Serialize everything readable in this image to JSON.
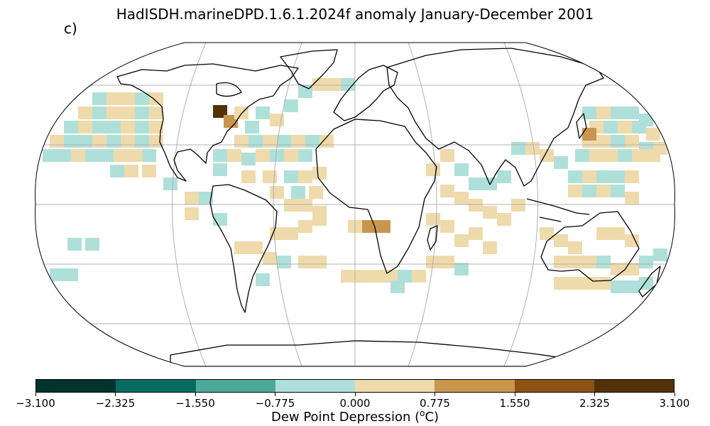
{
  "title": "HadISDH.marineDPD.1.6.1.2024f anomaly January-December 2001",
  "panel_label": "c)",
  "projection": "Robinson",
  "colorbar": {
    "label_main": "Dew Point Depression (",
    "label_sup": "o",
    "label_end": "C)",
    "ticks": [
      "−3.100",
      "−2.325",
      "−1.550",
      "−0.775",
      "0.000",
      "0.775",
      "1.550",
      "2.325",
      "3.100"
    ],
    "colors": [
      "#01332d",
      "#066c62",
      "#4fa99b",
      "#aee0d9",
      "#efdaab",
      "#c99650",
      "#8d5214",
      "#533208"
    ]
  },
  "colors": {
    "land_outline": "#000000",
    "gridline": "#b0b0b0"
  }
}
